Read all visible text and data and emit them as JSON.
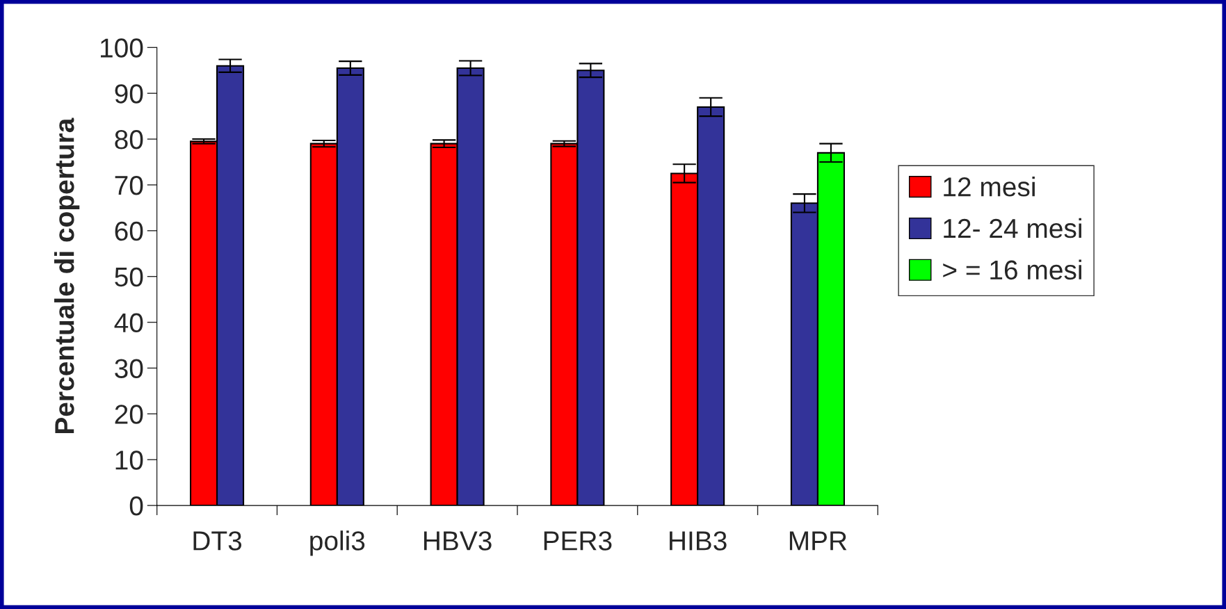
{
  "chart_data": {
    "type": "bar",
    "ylabel": "Percentuale di copertura",
    "categories": [
      "DT3",
      "poli3",
      "HBV3",
      "PER3",
      "HIB3",
      "MPR"
    ],
    "series": [
      {
        "name": "12 mesi",
        "color": "#ff0000",
        "values": [
          79.5,
          79,
          79,
          79,
          72.5,
          null
        ],
        "errors": [
          0.5,
          0.7,
          0.8,
          0.6,
          2,
          null
        ]
      },
      {
        "name": "12- 24 mesi",
        "color": "#333399",
        "values": [
          96,
          95.5,
          95.5,
          95,
          87,
          66
        ],
        "errors": [
          1.4,
          1.5,
          1.6,
          1.5,
          2,
          2
        ]
      },
      {
        "name": "> = 16 mesi",
        "color": "#00ff00",
        "values": [
          null,
          null,
          null,
          null,
          null,
          77
        ],
        "errors": [
          null,
          null,
          null,
          null,
          null,
          2
        ]
      }
    ],
    "ylim": [
      0,
      100
    ],
    "yticks": [
      0,
      10,
      20,
      30,
      40,
      50,
      60,
      70,
      80,
      90,
      100
    ],
    "grid": false,
    "legend": "right"
  }
}
